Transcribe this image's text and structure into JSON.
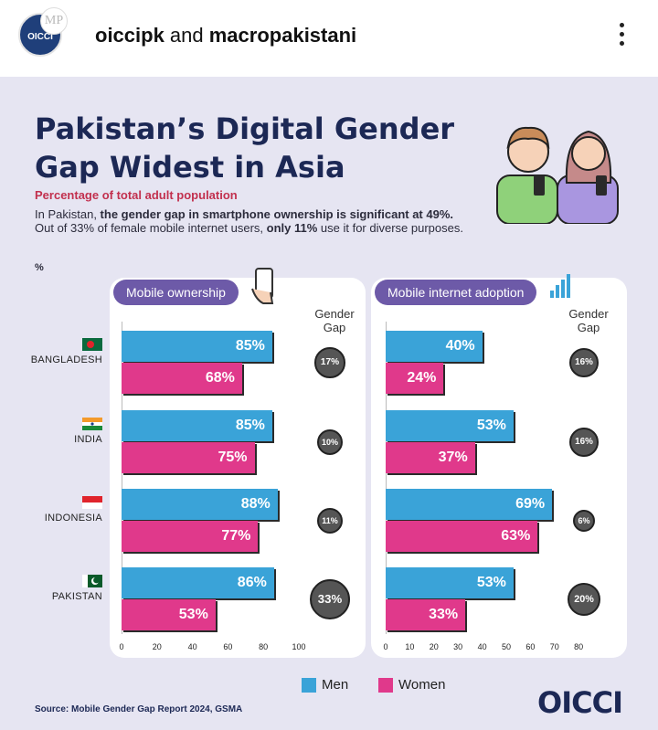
{
  "post": {
    "avatar_text": "OICCI",
    "avatar2_text": "MP",
    "handle_1": "oiccipk",
    "connector": " and ",
    "handle_2": "macropakistani"
  },
  "infographic": {
    "title": "Pakistan’s Digital Gender Gap Widest in Asia",
    "subtitle": "Percentage of total adult population",
    "desc_1": "In Pakistan, ",
    "desc_bold_1": "the gender gap in smartphone ownership is significant at 49%.",
    "desc_2": " Out of 33% of female mobile internet users, ",
    "desc_bold_2": "only 11%",
    "desc_3": " use it for diverse purposes.",
    "unit_label": "%",
    "gap_header_1": "Gender",
    "gap_header_2": "Gap",
    "source": "Source: Mobile Gender Gap Report 2024, GSMA",
    "logo": "OICCI",
    "legend": {
      "men": "Men",
      "women": "Women"
    },
    "colors": {
      "men": "#3aa3d8",
      "women": "#e0398b",
      "title": "#1c2855",
      "accent": "#c2304e",
      "tab": "#6d5aa8"
    },
    "countries": [
      {
        "name": "BANGLADESH",
        "flag": "bangladesh-flag"
      },
      {
        "name": "INDIA",
        "flag": "india-flag"
      },
      {
        "name": "INDONESIA",
        "flag": "indonesia-flag"
      },
      {
        "name": "PAKISTAN",
        "flag": "pakistan-flag"
      }
    ]
  },
  "chart_data": [
    {
      "type": "bar",
      "title": "Mobile ownership",
      "categories": [
        "BANGLADESH",
        "INDIA",
        "INDONESIA",
        "PAKISTAN"
      ],
      "series": [
        {
          "name": "Men",
          "values": [
            85,
            85,
            88,
            86
          ]
        },
        {
          "name": "Women",
          "values": [
            68,
            75,
            77,
            53
          ]
        }
      ],
      "value_labels": {
        "Men": [
          "85%",
          "85%",
          "88%",
          "86%"
        ],
        "Women": [
          "68%",
          "75%",
          "77%",
          "53%"
        ]
      },
      "gender_gap": [
        "17%",
        "10%",
        "11%",
        "33%"
      ],
      "gender_gap_values": [
        17,
        10,
        11,
        33
      ],
      "xticks": [
        "0",
        "20",
        "40",
        "60",
        "80",
        "100"
      ],
      "xlim": [
        0,
        100
      ]
    },
    {
      "type": "bar",
      "title": "Mobile internet adoption",
      "categories": [
        "BANGLADESH",
        "INDIA",
        "INDONESIA",
        "PAKISTAN"
      ],
      "series": [
        {
          "name": "Men",
          "values": [
            40,
            53,
            69,
            53
          ]
        },
        {
          "name": "Women",
          "values": [
            24,
            37,
            63,
            33
          ]
        }
      ],
      "value_labels": {
        "Men": [
          "40%",
          "53%",
          "69%",
          "53%"
        ],
        "Women": [
          "24%",
          "37%",
          "63%",
          "33%"
        ]
      },
      "gender_gap": [
        "16%",
        "16%",
        "6%",
        "20%"
      ],
      "gender_gap_values": [
        16,
        16,
        6,
        20
      ],
      "xticks": [
        "0",
        "10",
        "20",
        "30",
        "40",
        "50",
        "60",
        "70",
        "80"
      ],
      "xlim": [
        0,
        80
      ]
    }
  ]
}
